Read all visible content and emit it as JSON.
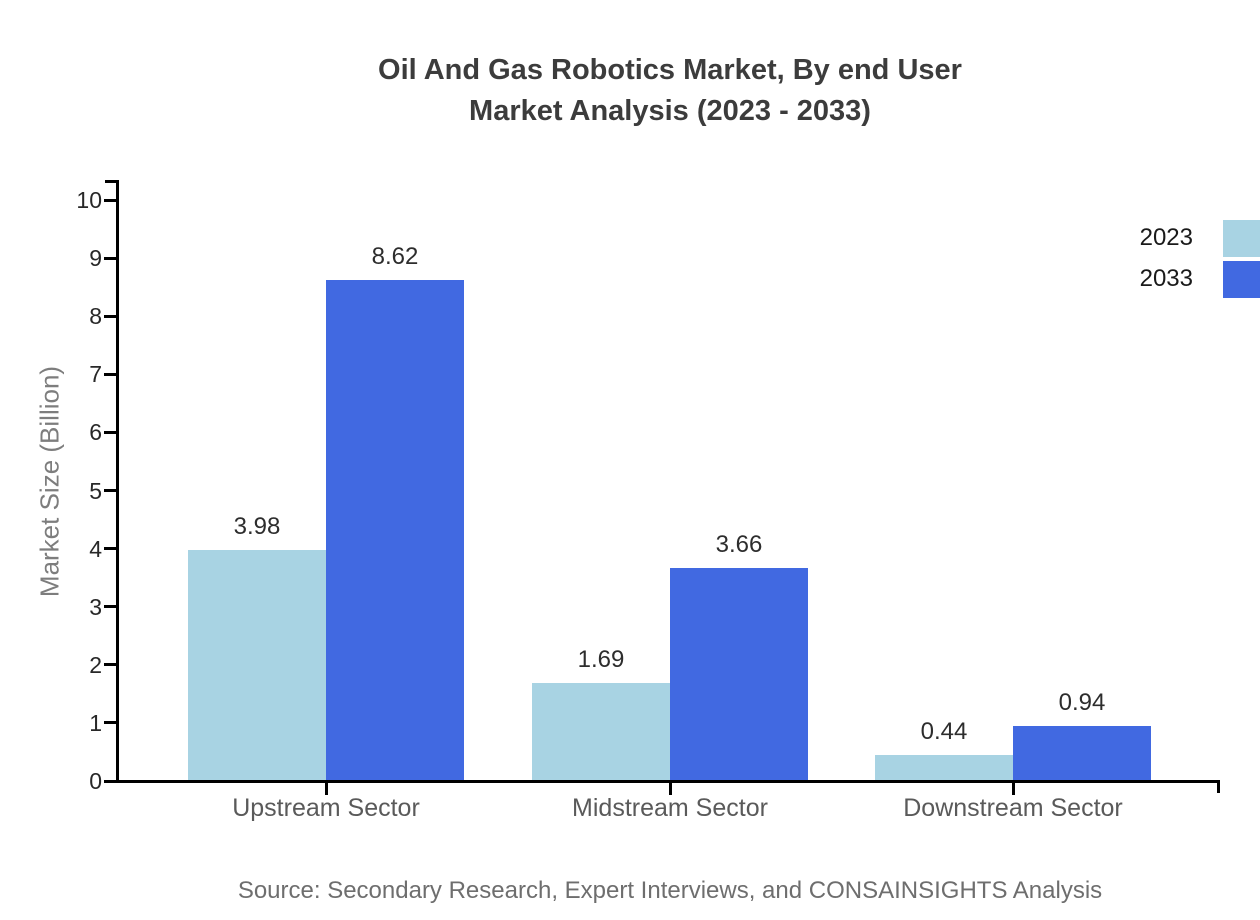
{
  "title": {
    "line1": "Oil And Gas Robotics Market, By end User",
    "line2": "Market Analysis (2023 - 2033)"
  },
  "chart_data": {
    "type": "bar",
    "categories": [
      "Upstream Sector",
      "Midstream Sector",
      "Downstream Sector"
    ],
    "series": [
      {
        "name": "2023",
        "color": "#A8D3E3",
        "values": [
          3.98,
          1.69,
          0.44
        ]
      },
      {
        "name": "2033",
        "color": "#4169E1",
        "values": [
          8.62,
          3.66,
          0.94
        ]
      }
    ],
    "title": "Oil And Gas Robotics Market, By end User Market Analysis (2023 - 2033)",
    "xlabel": "",
    "ylabel": "Market Size (Billion)",
    "ylim": [
      0,
      10
    ],
    "yticks": [
      0,
      1,
      2,
      3,
      4,
      5,
      6,
      7,
      8,
      9,
      10
    ],
    "grid": false,
    "legend_position": "top-right",
    "value_labels": true
  },
  "legend": {
    "items": [
      {
        "label": "2023",
        "color": "#A8D3E3"
      },
      {
        "label": "2033",
        "color": "#4169E1"
      }
    ]
  },
  "source": "Source: Secondary Research, Expert Interviews, and CONSAINSIGHTS Analysis"
}
